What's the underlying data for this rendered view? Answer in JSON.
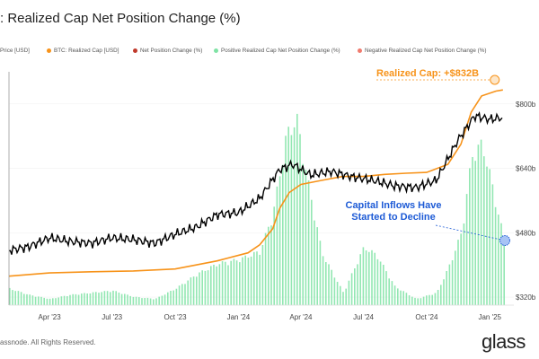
{
  "title": ": Realized Cap Net Position Change (%)",
  "legend": [
    {
      "label": "Price [USD]",
      "color": ""
    },
    {
      "label": "BTC: Realized Cap [USD]",
      "color": "#f7931a"
    },
    {
      "label": "Net Position Change (%)",
      "color": "#c0392b"
    },
    {
      "label": "Positive Realized Cap Net Position Change (%)",
      "color": "#7fe3a5"
    },
    {
      "label": "Negative Realized Cap Net Position Change (%)",
      "color": "#f07b6e"
    }
  ],
  "copyright": "assnode. All Rights Reserved.",
  "brand": "glass",
  "chart_data": {
    "type": "line",
    "x_tick_labels": [
      "Apr '23",
      "Jul '23",
      "Oct '23",
      "Jan '24",
      "Apr '24",
      "Jul '24",
      "Oct '24",
      "Jan '25"
    ],
    "y_right_tick_labels": [
      "$800b",
      "$640b",
      "$480b",
      "$320b"
    ],
    "y_right_ticks": [
      800,
      640,
      480,
      320
    ],
    "y_right_range": [
      300,
      880
    ],
    "series": [
      {
        "color": "#f7931a",
        "axis": "right",
        "x": [
          "2023-02-01",
          "2023-04-01",
          "2023-06-01",
          "2023-08-01",
          "2023-10-01",
          "2023-12-01",
          "2024-01-15",
          "2024-02-01",
          "2024-02-20",
          "2024-03-01",
          "2024-03-15",
          "2024-04-01",
          "2024-05-01",
          "2024-06-01",
          "2024-07-01",
          "2024-08-01",
          "2024-09-01",
          "2024-10-01",
          "2024-11-01",
          "2024-11-20",
          "2024-12-05",
          "2024-12-20",
          "2025-01-10",
          "2025-01-20"
        ],
        "values": [
          372,
          380,
          383,
          385,
          390,
          410,
          430,
          450,
          490,
          540,
          580,
          600,
          610,
          620,
          620,
          625,
          628,
          630,
          650,
          700,
          780,
          820,
          832,
          835
        ]
      },
      {
        "color": "#000000",
        "axis": "left",
        "x": [
          "2023-02-01",
          "2023-03-01",
          "2023-04-01",
          "2023-05-01",
          "2023-06-01",
          "2023-07-01",
          "2023-08-01",
          "2023-09-01",
          "2023-10-01",
          "2023-11-01",
          "2023-12-01",
          "2024-01-01",
          "2024-02-01",
          "2024-03-01",
          "2024-03-20",
          "2024-04-15",
          "2024-05-15",
          "2024-06-15",
          "2024-07-15",
          "2024-08-15",
          "2024-09-15",
          "2024-10-15",
          "2024-11-15",
          "2024-12-10",
          "2025-01-01",
          "2025-01-20"
        ],
        "values": [
          23,
          25,
          30,
          28,
          27,
          30,
          29,
          27,
          32,
          36,
          43,
          44,
          52,
          68,
          71,
          65,
          67,
          64,
          62,
          59,
          58,
          62,
          84,
          98,
          96,
          97
        ]
      },
      {
        "name": "Positive Realized Cap Net Position Change (%)",
        "color": "#7fe3a5",
        "type": "bar",
        "x": [
          "2023-02-01",
          "2023-03-01",
          "2023-04-01",
          "2023-05-01",
          "2023-06-01",
          "2023-07-01",
          "2023-08-01",
          "2023-09-01",
          "2023-10-01",
          "2023-11-01",
          "2023-12-01",
          "2024-01-01",
          "2024-02-01",
          "2024-02-20",
          "2024-03-10",
          "2024-03-25",
          "2024-04-10",
          "2024-05-01",
          "2024-06-01",
          "2024-06-20",
          "2024-07-01",
          "2024-07-20",
          "2024-08-15",
          "2024-09-15",
          "2024-10-15",
          "2024-11-01",
          "2024-11-20",
          "2024-12-05",
          "2024-12-20",
          "2025-01-01",
          "2025-01-15",
          "2025-01-25"
        ],
        "values": [
          0.8,
          0.5,
          0.3,
          0.5,
          0.6,
          0.7,
          0.4,
          0.3,
          0.8,
          1.5,
          2.0,
          2.2,
          2.6,
          4.5,
          8.2,
          9.0,
          6.0,
          2.5,
          0.6,
          2.0,
          2.8,
          2.4,
          0.9,
          0.3,
          0.6,
          1.8,
          3.5,
          7.2,
          7.8,
          6.2,
          4.0,
          2.8
        ]
      }
    ],
    "annotations": [
      "Realized Cap: +$832B",
      "Capital Inflows Have Started to Decline"
    ]
  }
}
